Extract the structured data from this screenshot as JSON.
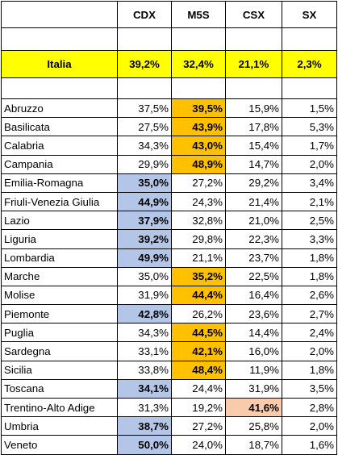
{
  "headers": [
    "",
    "CDX",
    "M5S",
    "CSX",
    "SX"
  ],
  "italia": {
    "name": "Italia",
    "values": [
      "39,2%",
      "32,4%",
      "21,1%",
      "2,3%"
    ]
  },
  "colors": {
    "cdx_highlight": "#b4c6e7",
    "m5s_highlight": "#ffc000",
    "csx_highlight": "#f8cbad",
    "italia_row": "#ffff00"
  },
  "regions": [
    {
      "name": "Abruzzo",
      "values": [
        "37,5%",
        "39,5%",
        "15,9%",
        "1,5%"
      ],
      "winner": "m5s"
    },
    {
      "name": "Basilicata",
      "values": [
        "27,5%",
        "43,9%",
        "17,8%",
        "5,3%"
      ],
      "winner": "m5s"
    },
    {
      "name": "Calabria",
      "values": [
        "34,3%",
        "43,0%",
        "15,4%",
        "1,7%"
      ],
      "winner": "m5s"
    },
    {
      "name": "Campania",
      "values": [
        "29,9%",
        "48,9%",
        "14,7%",
        "2,0%"
      ],
      "winner": "m5s"
    },
    {
      "name": "Emilia-Romagna",
      "values": [
        "35,0%",
        "27,2%",
        "29,2%",
        "3,4%"
      ],
      "winner": "cdx"
    },
    {
      "name": "Friuli-Venezia Giulia",
      "values": [
        "44,9%",
        "24,3%",
        "21,4%",
        "2,1%"
      ],
      "winner": "cdx"
    },
    {
      "name": "Lazio",
      "values": [
        "37,9%",
        "32,8%",
        "21,0%",
        "2,5%"
      ],
      "winner": "cdx"
    },
    {
      "name": "Liguria",
      "values": [
        "39,2%",
        "29,8%",
        "22,3%",
        "3,3%"
      ],
      "winner": "cdx"
    },
    {
      "name": "Lombardia",
      "values": [
        "49,9%",
        "21,1%",
        "23,7%",
        "1,8%"
      ],
      "winner": "cdx"
    },
    {
      "name": "Marche",
      "values": [
        "35,0%",
        "35,2%",
        "22,5%",
        "1,8%"
      ],
      "winner": "m5s"
    },
    {
      "name": "Molise",
      "values": [
        "31,9%",
        "44,4%",
        "16,4%",
        "2,6%"
      ],
      "winner": "m5s"
    },
    {
      "name": "Piemonte",
      "values": [
        "42,8%",
        "26,2%",
        "23,6%",
        "2,7%"
      ],
      "winner": "cdx"
    },
    {
      "name": "Puglia",
      "values": [
        "34,3%",
        "44,5%",
        "14,4%",
        "2,4%"
      ],
      "winner": "m5s"
    },
    {
      "name": "Sardegna",
      "values": [
        "33,1%",
        "42,1%",
        "16,0%",
        "2,0%"
      ],
      "winner": "m5s"
    },
    {
      "name": "Sicilia",
      "values": [
        "33,8%",
        "48,4%",
        "11,9%",
        "1,8%"
      ],
      "winner": "m5s"
    },
    {
      "name": "Toscana",
      "values": [
        "34,1%",
        "24,4%",
        "31,9%",
        "3,5%"
      ],
      "winner": "cdx"
    },
    {
      "name": "Trentino-Alto Adige",
      "values": [
        "31,3%",
        "19,2%",
        "41,6%",
        "2,8%"
      ],
      "winner": "csx"
    },
    {
      "name": "Umbria",
      "values": [
        "38,7%",
        "27,2%",
        "25,8%",
        "2,0%"
      ],
      "winner": "cdx"
    },
    {
      "name": "Veneto",
      "values": [
        "50,0%",
        "24,0%",
        "18,7%",
        "1,6%"
      ],
      "winner": "cdx"
    }
  ]
}
